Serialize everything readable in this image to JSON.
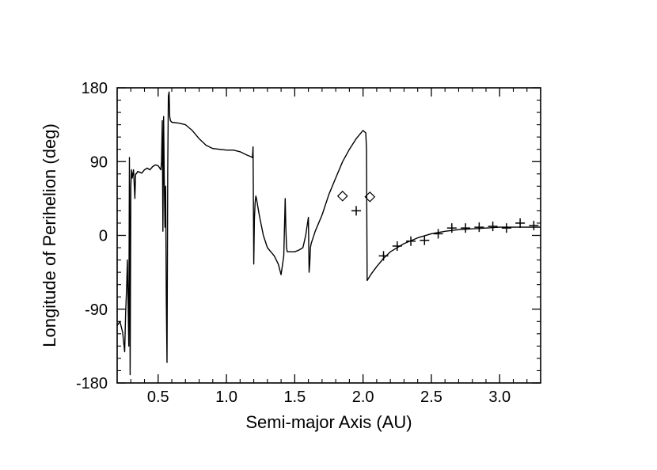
{
  "chart_data": {
    "type": "line",
    "title": "",
    "xlabel": "Semi-major Axis (AU)",
    "ylabel": "Longitude of Perihelion (deg)",
    "xlim": [
      0.2,
      3.3
    ],
    "ylim": [
      -180,
      180
    ],
    "x_ticks": [
      0.5,
      1.0,
      1.5,
      2.0,
      2.5,
      3.0
    ],
    "x_tick_labels": [
      "0.5",
      "1.0",
      "1.5",
      "2.0",
      "2.5",
      "3.0"
    ],
    "y_ticks": [
      -180,
      -90,
      0,
      90,
      180
    ],
    "y_tick_labels": [
      "-180",
      "-90",
      "0",
      "90",
      "180"
    ],
    "grid": false,
    "series": [
      {
        "style": "line",
        "color": "#000000",
        "x": [
          0.2,
          0.22,
          0.24,
          0.255,
          0.262,
          0.27,
          0.275,
          0.28,
          0.285,
          0.29,
          0.295,
          0.3,
          0.305,
          0.31,
          0.32,
          0.33,
          0.335,
          0.34,
          0.35,
          0.38,
          0.4,
          0.42,
          0.44,
          0.46,
          0.48,
          0.5,
          0.52,
          0.525,
          0.53,
          0.535,
          0.54,
          0.545,
          0.55,
          0.555,
          0.56,
          0.565,
          0.57,
          0.575,
          0.58,
          0.585,
          0.59,
          0.6,
          0.65,
          0.7,
          0.75,
          0.8,
          0.85,
          0.9,
          0.95,
          1.0,
          1.05,
          1.1,
          1.15,
          1.18,
          1.19,
          1.195,
          1.2,
          1.205,
          1.21,
          1.215,
          1.22,
          1.24,
          1.27,
          1.3,
          1.35,
          1.38,
          1.4,
          1.42,
          1.43,
          1.435,
          1.44,
          1.445,
          1.45,
          1.47,
          1.5,
          1.53,
          1.56,
          1.58,
          1.6,
          1.605,
          1.61,
          1.615,
          1.62,
          1.63,
          1.65,
          1.7,
          1.75,
          1.8,
          1.85,
          1.9,
          1.95,
          2.0,
          2.02,
          2.025,
          2.03,
          2.06,
          2.1,
          2.15,
          2.2,
          2.3,
          2.4,
          2.5,
          2.6,
          2.7,
          2.8,
          2.9,
          3.0,
          3.1,
          3.2,
          3.3
        ],
        "y": [
          -110,
          -105,
          -118,
          -142,
          -95,
          -60,
          -30,
          -80,
          -135,
          95,
          -170,
          60,
          80,
          70,
          80,
          45,
          75,
          75,
          78,
          76,
          80,
          82,
          80,
          84,
          86,
          85,
          80,
          90,
          140,
          5,
          145,
          70,
          10,
          60,
          -80,
          -155,
          80,
          170,
          175,
          145,
          140,
          138,
          137,
          135,
          128,
          118,
          110,
          106,
          105,
          104,
          104,
          102,
          98,
          96,
          95,
          108,
          -35,
          20,
          40,
          48,
          45,
          25,
          0,
          -15,
          -25,
          -35,
          -48,
          -25,
          45,
          10,
          -15,
          -20,
          -20,
          -20,
          -20,
          -18,
          -15,
          0,
          22,
          -45,
          -35,
          -15,
          -10,
          -5,
          5,
          25,
          50,
          70,
          90,
          105,
          118,
          128,
          125,
          105,
          -55,
          -47,
          -38,
          -28,
          -20,
          -10,
          -3,
          2,
          5,
          7,
          8,
          9,
          10,
          10,
          10,
          10
        ]
      },
      {
        "name": "",
        "style": "marker",
        "marker": "diamond",
        "color": "#000000",
        "x": [
          1.85,
          2.05
        ],
        "y": [
          48,
          47
        ]
      },
      {
        "name": "",
        "style": "marker",
        "marker": "plus",
        "color": "#000000",
        "x": [
          1.95,
          2.15,
          2.25,
          2.35,
          2.45,
          2.55,
          2.65,
          2.75,
          2.85,
          2.95,
          3.05,
          3.15,
          3.25
        ],
        "y": [
          30,
          -25,
          -13,
          -7,
          -6,
          2,
          9,
          9,
          10,
          11,
          9,
          15,
          12
        ]
      }
    ]
  }
}
